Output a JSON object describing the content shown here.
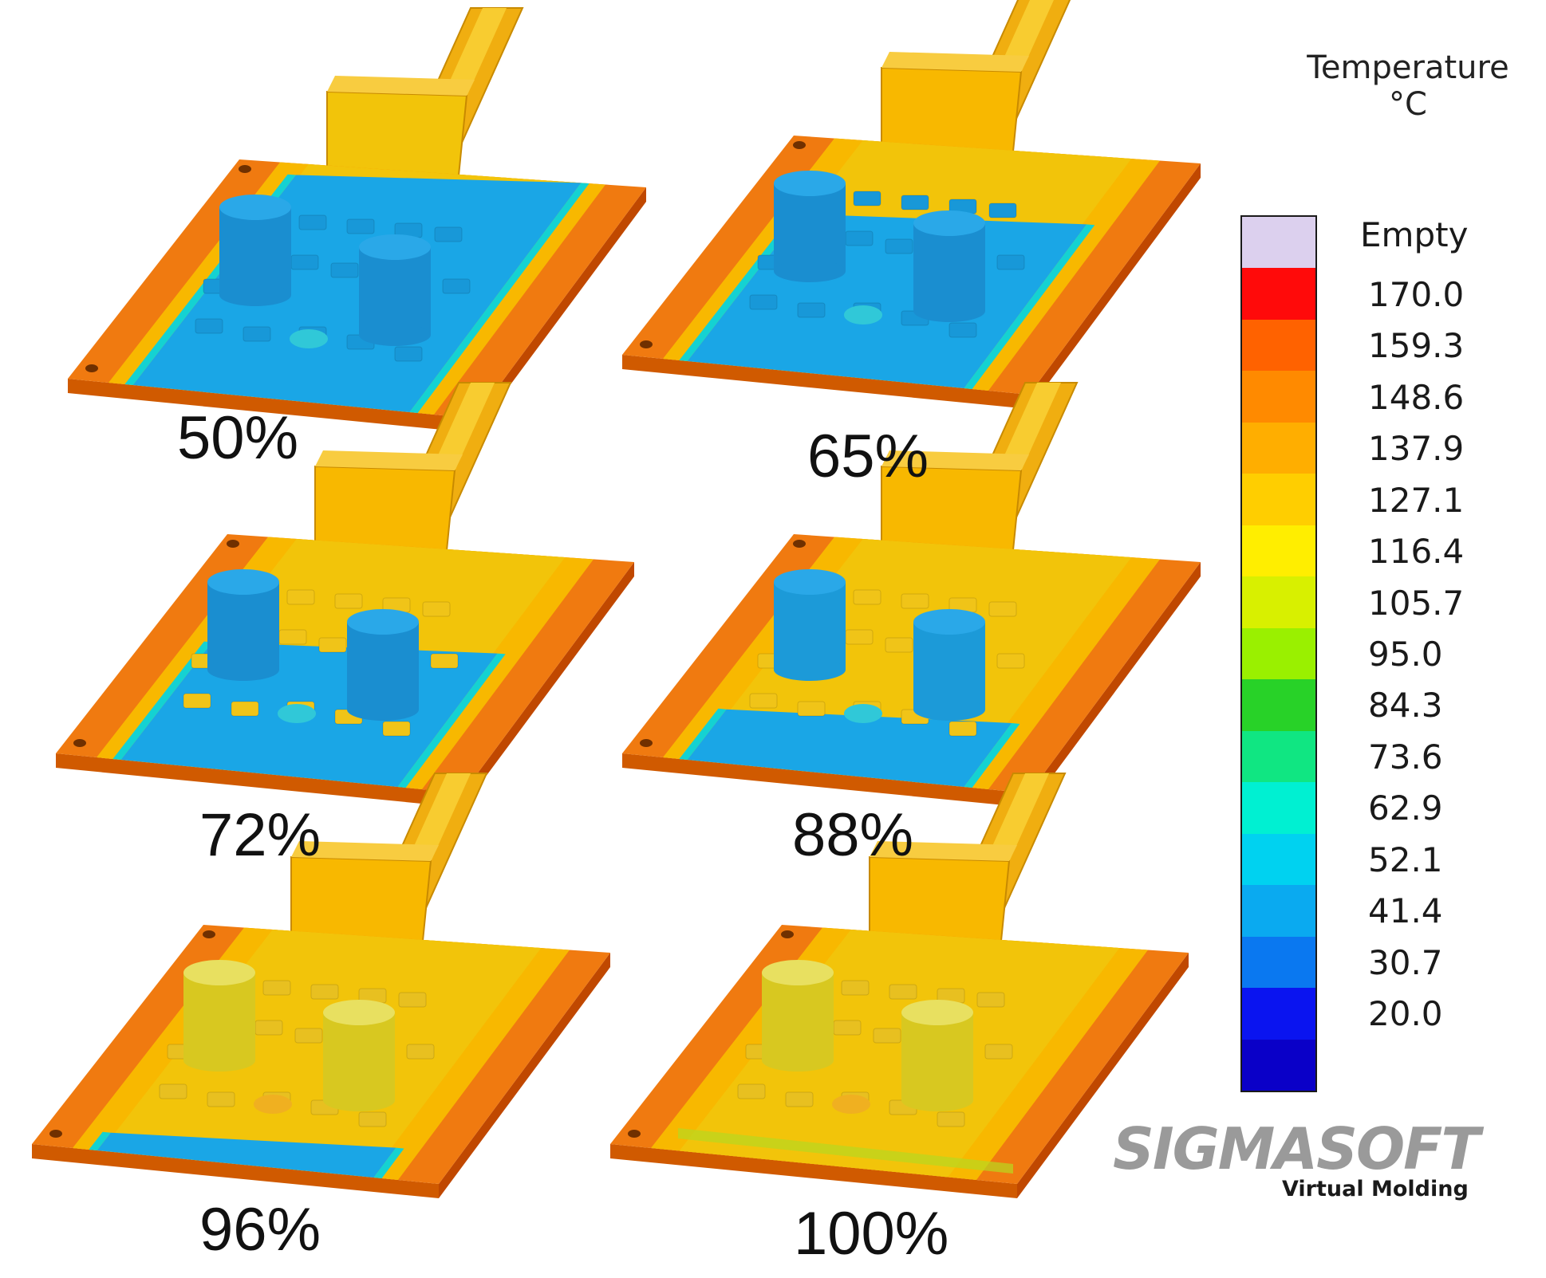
{
  "legend": {
    "title_line1": "Temperature",
    "title_line2": "°C",
    "entries": [
      {
        "label": "Empty",
        "color": "#dcd0ee"
      },
      {
        "label": "170.0",
        "color": "#ff0a0a"
      },
      {
        "label": "159.3",
        "color": "#ff6200"
      },
      {
        "label": "148.6",
        "color": "#ff8a00"
      },
      {
        "label": "137.9",
        "color": "#ffae00"
      },
      {
        "label": "127.1",
        "color": "#ffce00"
      },
      {
        "label": "116.4",
        "color": "#ffee00"
      },
      {
        "label": "105.7",
        "color": "#d8f000"
      },
      {
        "label": "95.0",
        "color": "#9af000"
      },
      {
        "label": "84.3",
        "color": "#28d228"
      },
      {
        "label": "73.6",
        "color": "#10e682"
      },
      {
        "label": "62.9",
        "color": "#00f0d2"
      },
      {
        "label": "52.1",
        "color": "#00d2f0"
      },
      {
        "label": "41.4",
        "color": "#0aaaf0"
      },
      {
        "label": "30.7",
        "color": "#0a78f0"
      },
      {
        "label": "20.0",
        "color": "#0a14f0"
      },
      {
        "label": "",
        "color": "#0a00c8"
      }
    ]
  },
  "panels": [
    {
      "label": "50%",
      "fill": 0.5
    },
    {
      "label": "65%",
      "fill": 0.65
    },
    {
      "label": "72%",
      "fill": 0.72
    },
    {
      "label": "88%",
      "fill": 0.88
    },
    {
      "label": "96%",
      "fill": 0.96
    },
    {
      "label": "100%",
      "fill": 1.0
    }
  ],
  "logo": {
    "brand": "SIGMASOFT",
    "tagline": "Virtual Molding"
  },
  "colors": {
    "edge": "#f07a10",
    "edge_dark": "#d05a00",
    "warm": "#f8b800",
    "hot_yellow": "#f2c40a",
    "unfilled": "#1aa6e6",
    "unfilled_dark": "#0e7ec0",
    "cyan_band": "#14d2d2",
    "green_band": "#20c840"
  }
}
